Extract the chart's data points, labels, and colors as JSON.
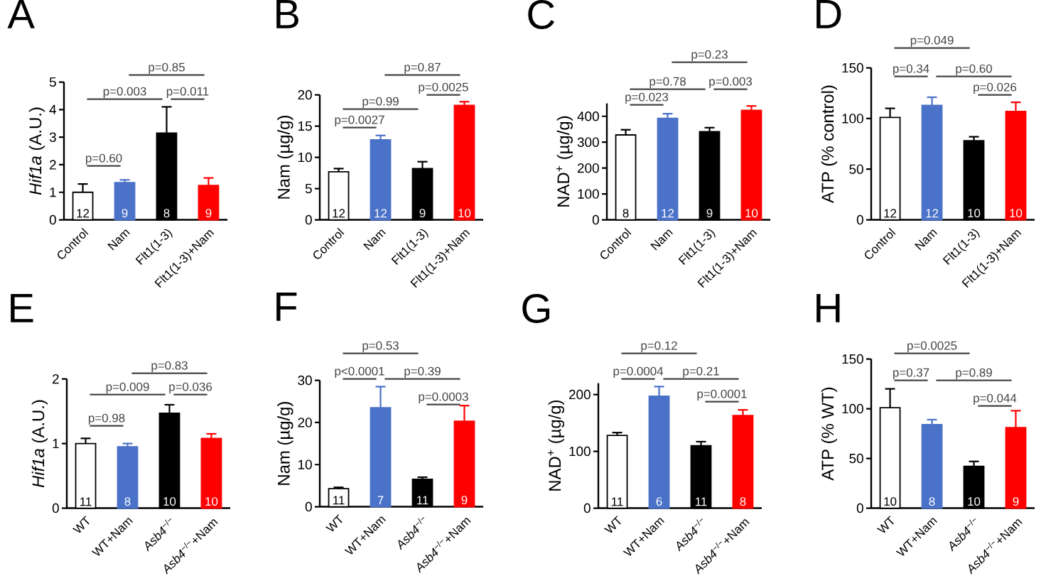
{
  "chart_data": [
    {
      "type": "bar",
      "title": "A",
      "ylabel": "*Hif1a* (A.U.)",
      "categories": [
        "Control",
        "Nam",
        "Flt1(1-3)",
        "Flt1(1-3)+Nam"
      ],
      "values": [
        1.0,
        1.35,
        3.15,
        1.25
      ],
      "errors": [
        0.3,
        0.1,
        0.95,
        0.27
      ],
      "colors": [
        "#ffffff",
        "#4a72c8",
        "#000000",
        "#ff0000"
      ],
      "ylim": [
        0,
        5
      ],
      "yticks": [
        0,
        1,
        2,
        3,
        4,
        5
      ],
      "annotations": [
        {
          "text": "12",
          "x": "Control",
          "y": 0
        },
        {
          "text": "9",
          "x": "Nam",
          "y": 0
        },
        {
          "text": "8",
          "x": "Flt1(1-3)",
          "y": 0
        },
        {
          "text": "9",
          "x": "Flt1(1-3)+Nam",
          "y": 0
        },
        "p=0.85",
        "p=0.003",
        "p=0.011",
        "p=0.60"
      ]
    },
    {
      "type": "bar",
      "title": "B",
      "ylabel": "Nam (µg/g)",
      "categories": [
        "Control",
        "Nam",
        "Flt1(1-3)",
        "Flt1(1-3)+Nam"
      ],
      "values": [
        7.7,
        12.8,
        8.2,
        18.3
      ],
      "errors": [
        0.5,
        0.7,
        1.1,
        0.6
      ],
      "colors": [
        "#ffffff",
        "#4a72c8",
        "#000000",
        "#ff0000"
      ],
      "ylim": [
        0,
        20
      ],
      "yticks": [
        0,
        5,
        10,
        15,
        20
      ],
      "annotations": [
        {
          "text": "12",
          "x": "Control",
          "y": 0
        },
        {
          "text": "12",
          "x": "Nam",
          "y": 0
        },
        {
          "text": "9",
          "x": "Flt1(1-3)",
          "y": 0
        },
        {
          "text": "10",
          "x": "Flt1(1-3)+Nam",
          "y": 0
        },
        "p=0.87",
        "p=0.0025",
        "p=0.99",
        "p=0.0027"
      ]
    },
    {
      "type": "bar",
      "title": "C",
      "ylabel": "NAD$^{+}$ (µg/g)",
      "categories": [
        "Control",
        "Nam",
        "Flt1(1-3)",
        "Flt1(1-3)+Nam"
      ],
      "values": [
        328,
        392,
        341,
        423
      ],
      "errors": [
        20,
        18,
        15,
        17
      ],
      "colors": [
        "#ffffff",
        "#4a72c8",
        "#000000",
        "#ff0000"
      ],
      "ylim": [
        0,
        450
      ],
      "yticks": [
        0,
        100,
        200,
        300,
        400
      ],
      "annotations": [
        {
          "text": "8",
          "x": "Control",
          "y": 0
        },
        {
          "text": "12",
          "x": "Nam",
          "y": 0
        },
        {
          "text": "9",
          "x": "Flt1(1-3)",
          "y": 0
        },
        {
          "text": "10",
          "x": "Flt1(1-3)+Nam",
          "y": 0
        },
        "p=0.23",
        "p=0.78",
        "p=0.003",
        "p=0.023"
      ]
    },
    {
      "type": "bar",
      "title": "D",
      "ylabel": "ATP (% control)",
      "categories": [
        "Control",
        "Nam",
        "Flt1(1-3)",
        "Flt1(1-3)+Nam"
      ],
      "values": [
        101,
        113,
        78,
        107
      ],
      "errors": [
        9,
        8,
        4,
        9
      ],
      "colors": [
        "#ffffff",
        "#4a72c8",
        "#000000",
        "#ff0000"
      ],
      "ylim": [
        0,
        150
      ],
      "yticks": [
        0,
        50,
        100,
        150
      ],
      "annotations": [
        {
          "text": "12",
          "x": "Control",
          "y": 0
        },
        {
          "text": "12",
          "x": "Nam",
          "y": 0
        },
        {
          "text": "10",
          "x": "Flt1(1-3)",
          "y": 0
        },
        {
          "text": "10",
          "x": "Flt1(1-3)+Nam",
          "y": 0
        },
        "p=0.049",
        "p=0.34",
        "p=0.60",
        "p=0.026"
      ]
    },
    {
      "type": "bar",
      "title": "E",
      "ylabel": "*Hif1a* (A.U.)",
      "categories": [
        "WT",
        "WT+Nam",
        "*Asb4*$^{−/−}$",
        "*Asb4*$^{−/−}$+Nam"
      ],
      "values": [
        1.0,
        0.95,
        1.47,
        1.08
      ],
      "errors": [
        0.08,
        0.05,
        0.13,
        0.07
      ],
      "colors": [
        "#ffffff",
        "#4a72c8",
        "#000000",
        "#ff0000"
      ],
      "ylim": [
        0,
        2
      ],
      "yticks": [
        0,
        1,
        2
      ],
      "annotations": [
        {
          "text": "11",
          "x": "WT",
          "y": 0
        },
        {
          "text": "8",
          "x": "WT+Nam",
          "y": 0
        },
        {
          "text": "10",
          "x": "*Asb4*$^{−/−}$",
          "y": 0
        },
        {
          "text": "10",
          "x": "*Asb4*$^{−/−}$+Nam",
          "y": 0
        },
        "p=0.83",
        "p=0.009",
        "p=0.036",
        "p=0.98"
      ]
    },
    {
      "type": "bar",
      "title": "F",
      "ylabel": "Nam (µg/g)",
      "categories": [
        "WT",
        "WT+Nam",
        "*Asb4*$^{−/−}$",
        "*Asb4*$^{−/−}$+Nam"
      ],
      "values": [
        4.3,
        23.5,
        6.5,
        20.3
      ],
      "errors": [
        0.3,
        5.0,
        0.5,
        3.7
      ],
      "colors": [
        "#ffffff",
        "#4a72c8",
        "#000000",
        "#ff0000"
      ],
      "ylim": [
        0,
        30
      ],
      "yticks": [
        0,
        10,
        20,
        30
      ],
      "annotations": [
        {
          "text": "11",
          "x": "WT",
          "y": 0
        },
        {
          "text": "7",
          "x": "WT+Nam",
          "y": 0
        },
        {
          "text": "11",
          "x": "*Asb4*$^{−/−}$",
          "y": 0
        },
        {
          "text": "9",
          "x": "*Asb4*$^{−/−}$+Nam",
          "y": 0
        },
        "p=0.53",
        "p<0.0001",
        "p=0.39",
        "p=0.0003"
      ]
    },
    {
      "type": "bar",
      "title": "G",
      "ylabel": "NAD$^{+}$ (µg/g)",
      "categories": [
        "WT",
        "WT+Nam",
        "*Asb4*$^{−/−}$",
        "*Asb4*$^{−/−}$+Nam"
      ],
      "values": [
        128,
        197,
        110,
        163
      ],
      "errors": [
        5,
        17,
        7,
        10
      ],
      "colors": [
        "#ffffff",
        "#4a72c8",
        "#000000",
        "#ff0000"
      ],
      "ylim": [
        0,
        220
      ],
      "yticks": [
        0,
        100,
        200
      ],
      "annotations": [
        {
          "text": "11",
          "x": "WT",
          "y": 0
        },
        {
          "text": "6",
          "x": "WT+Nam",
          "y": 0
        },
        {
          "text": "11",
          "x": "*Asb4*$^{−/−}$",
          "y": 0
        },
        {
          "text": "8",
          "x": "*Asb4*$^{−/−}$+Nam",
          "y": 0
        },
        "p=0.12",
        "p=0.0004",
        "p=0.21",
        "p=0.0001"
      ]
    },
    {
      "type": "bar",
      "title": "H",
      "ylabel": "ATP (% WT)",
      "categories": [
        "WT",
        "WT+Nam",
        "*Asb4*$^{−/−}$",
        "*Asb4*$^{−/−}$+Nam"
      ],
      "values": [
        101,
        84,
        42,
        81
      ],
      "errors": [
        19,
        5,
        5,
        17
      ],
      "colors": [
        "#ffffff",
        "#4a72c8",
        "#000000",
        "#ff0000"
      ],
      "ylim": [
        0,
        150
      ],
      "yticks": [
        0,
        50,
        100,
        150
      ],
      "annotations": [
        {
          "text": "10",
          "x": "WT",
          "y": 0
        },
        {
          "text": "8",
          "x": "WT+Nam",
          "y": 0
        },
        {
          "text": "10",
          "x": "*Asb4*$^{−/−}$",
          "y": 0
        },
        {
          "text": "9",
          "x": "*Asb4*$^{−/−}$+Nam",
          "y": 0
        },
        "p=0.0025",
        "p=0.37",
        "p=0.89",
        "p=0.044"
      ]
    }
  ]
}
